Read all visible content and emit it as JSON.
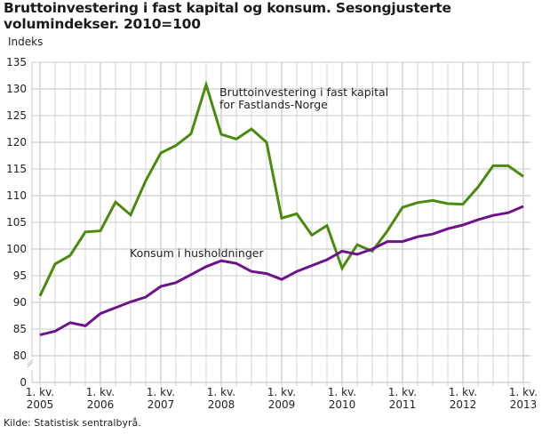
{
  "title": "Bruttoinvestering i fast kapital og konsum. Sesongjusterte volumindekser. 2010=100",
  "y_axis_label": "Indeks",
  "source": "Kilde: Statistisk sentralbyrå.",
  "colors": {
    "investment": "#4a8a0c",
    "consumption": "#6e128c",
    "grid": "#d4d4d4",
    "axis": "#c8c8c8"
  },
  "chart_data": {
    "type": "line",
    "title": "Bruttoinvestering i fast kapital og konsum. Sesongjusterte volumindekser. 2010=100",
    "xlabel": "",
    "ylabel": "Indeks",
    "ylim": [
      0,
      135
    ],
    "y_axis_break": [
      0,
      80
    ],
    "y_ticks": [
      0,
      80,
      85,
      90,
      95,
      100,
      105,
      110,
      115,
      120,
      125,
      130,
      135
    ],
    "grid": true,
    "legend_position": "inline annotations",
    "x_tick_labels": [
      {
        "index": 0,
        "line1": "1. kv.",
        "line2": "2005"
      },
      {
        "index": 4,
        "line1": "1. kv.",
        "line2": "2006"
      },
      {
        "index": 8,
        "line1": "1. kv.",
        "line2": "2007"
      },
      {
        "index": 12,
        "line1": "1. kv.",
        "line2": "2008"
      },
      {
        "index": 16,
        "line1": "1. kv.",
        "line2": "2009"
      },
      {
        "index": 20,
        "line1": "1. kv.",
        "line2": "2010"
      },
      {
        "index": 24,
        "line1": "1. kv.",
        "line2": "2011"
      },
      {
        "index": 28,
        "line1": "1. kv.",
        "line2": "2012"
      },
      {
        "index": 32,
        "line1": "1. kv.",
        "line2": "2013"
      }
    ],
    "x": [
      "2005K1",
      "2005K2",
      "2005K3",
      "2005K4",
      "2006K1",
      "2006K2",
      "2006K3",
      "2006K4",
      "2007K1",
      "2007K2",
      "2007K3",
      "2007K4",
      "2008K1",
      "2008K2",
      "2008K3",
      "2008K4",
      "2009K1",
      "2009K2",
      "2009K3",
      "2009K4",
      "2010K1",
      "2010K2",
      "2010K3",
      "2010K4",
      "2011K1",
      "2011K2",
      "2011K3",
      "2011K4",
      "2012K1",
      "2012K2",
      "2012K3",
      "2012K4",
      "2013K1"
    ],
    "series": [
      {
        "name": "Bruttoinvestering i fast kapital for Fastlands-Norge",
        "annotation": [
          "Bruttoinvestering i fast kapital",
          "for Fastlands-Norge"
        ],
        "color": "#4a8a0c",
        "values": [
          91.2,
          97.2,
          98.8,
          103.2,
          103.4,
          108.8,
          106.4,
          112.8,
          118.0,
          119.4,
          121.6,
          130.8,
          121.5,
          120.6,
          122.5,
          120.0,
          105.8,
          106.6,
          102.6,
          104.4,
          96.4,
          100.8,
          99.6,
          103.4,
          107.8,
          108.7,
          109.1,
          108.5,
          108.4,
          111.6,
          115.6,
          115.6,
          113.6
        ]
      },
      {
        "name": "Konsum i husholdninger",
        "annotation": [
          "Konsum i husholdninger"
        ],
        "color": "#6e128c",
        "values": [
          83.9,
          84.6,
          86.2,
          85.6,
          87.9,
          89.0,
          90.1,
          91.0,
          93.0,
          93.7,
          95.2,
          96.7,
          97.8,
          97.3,
          95.8,
          95.4,
          94.3,
          95.8,
          96.9,
          98.0,
          99.6,
          99.0,
          100.0,
          101.4,
          101.4,
          102.3,
          102.8,
          103.8,
          104.5,
          105.5,
          106.3,
          106.8,
          108.0
        ]
      }
    ]
  }
}
